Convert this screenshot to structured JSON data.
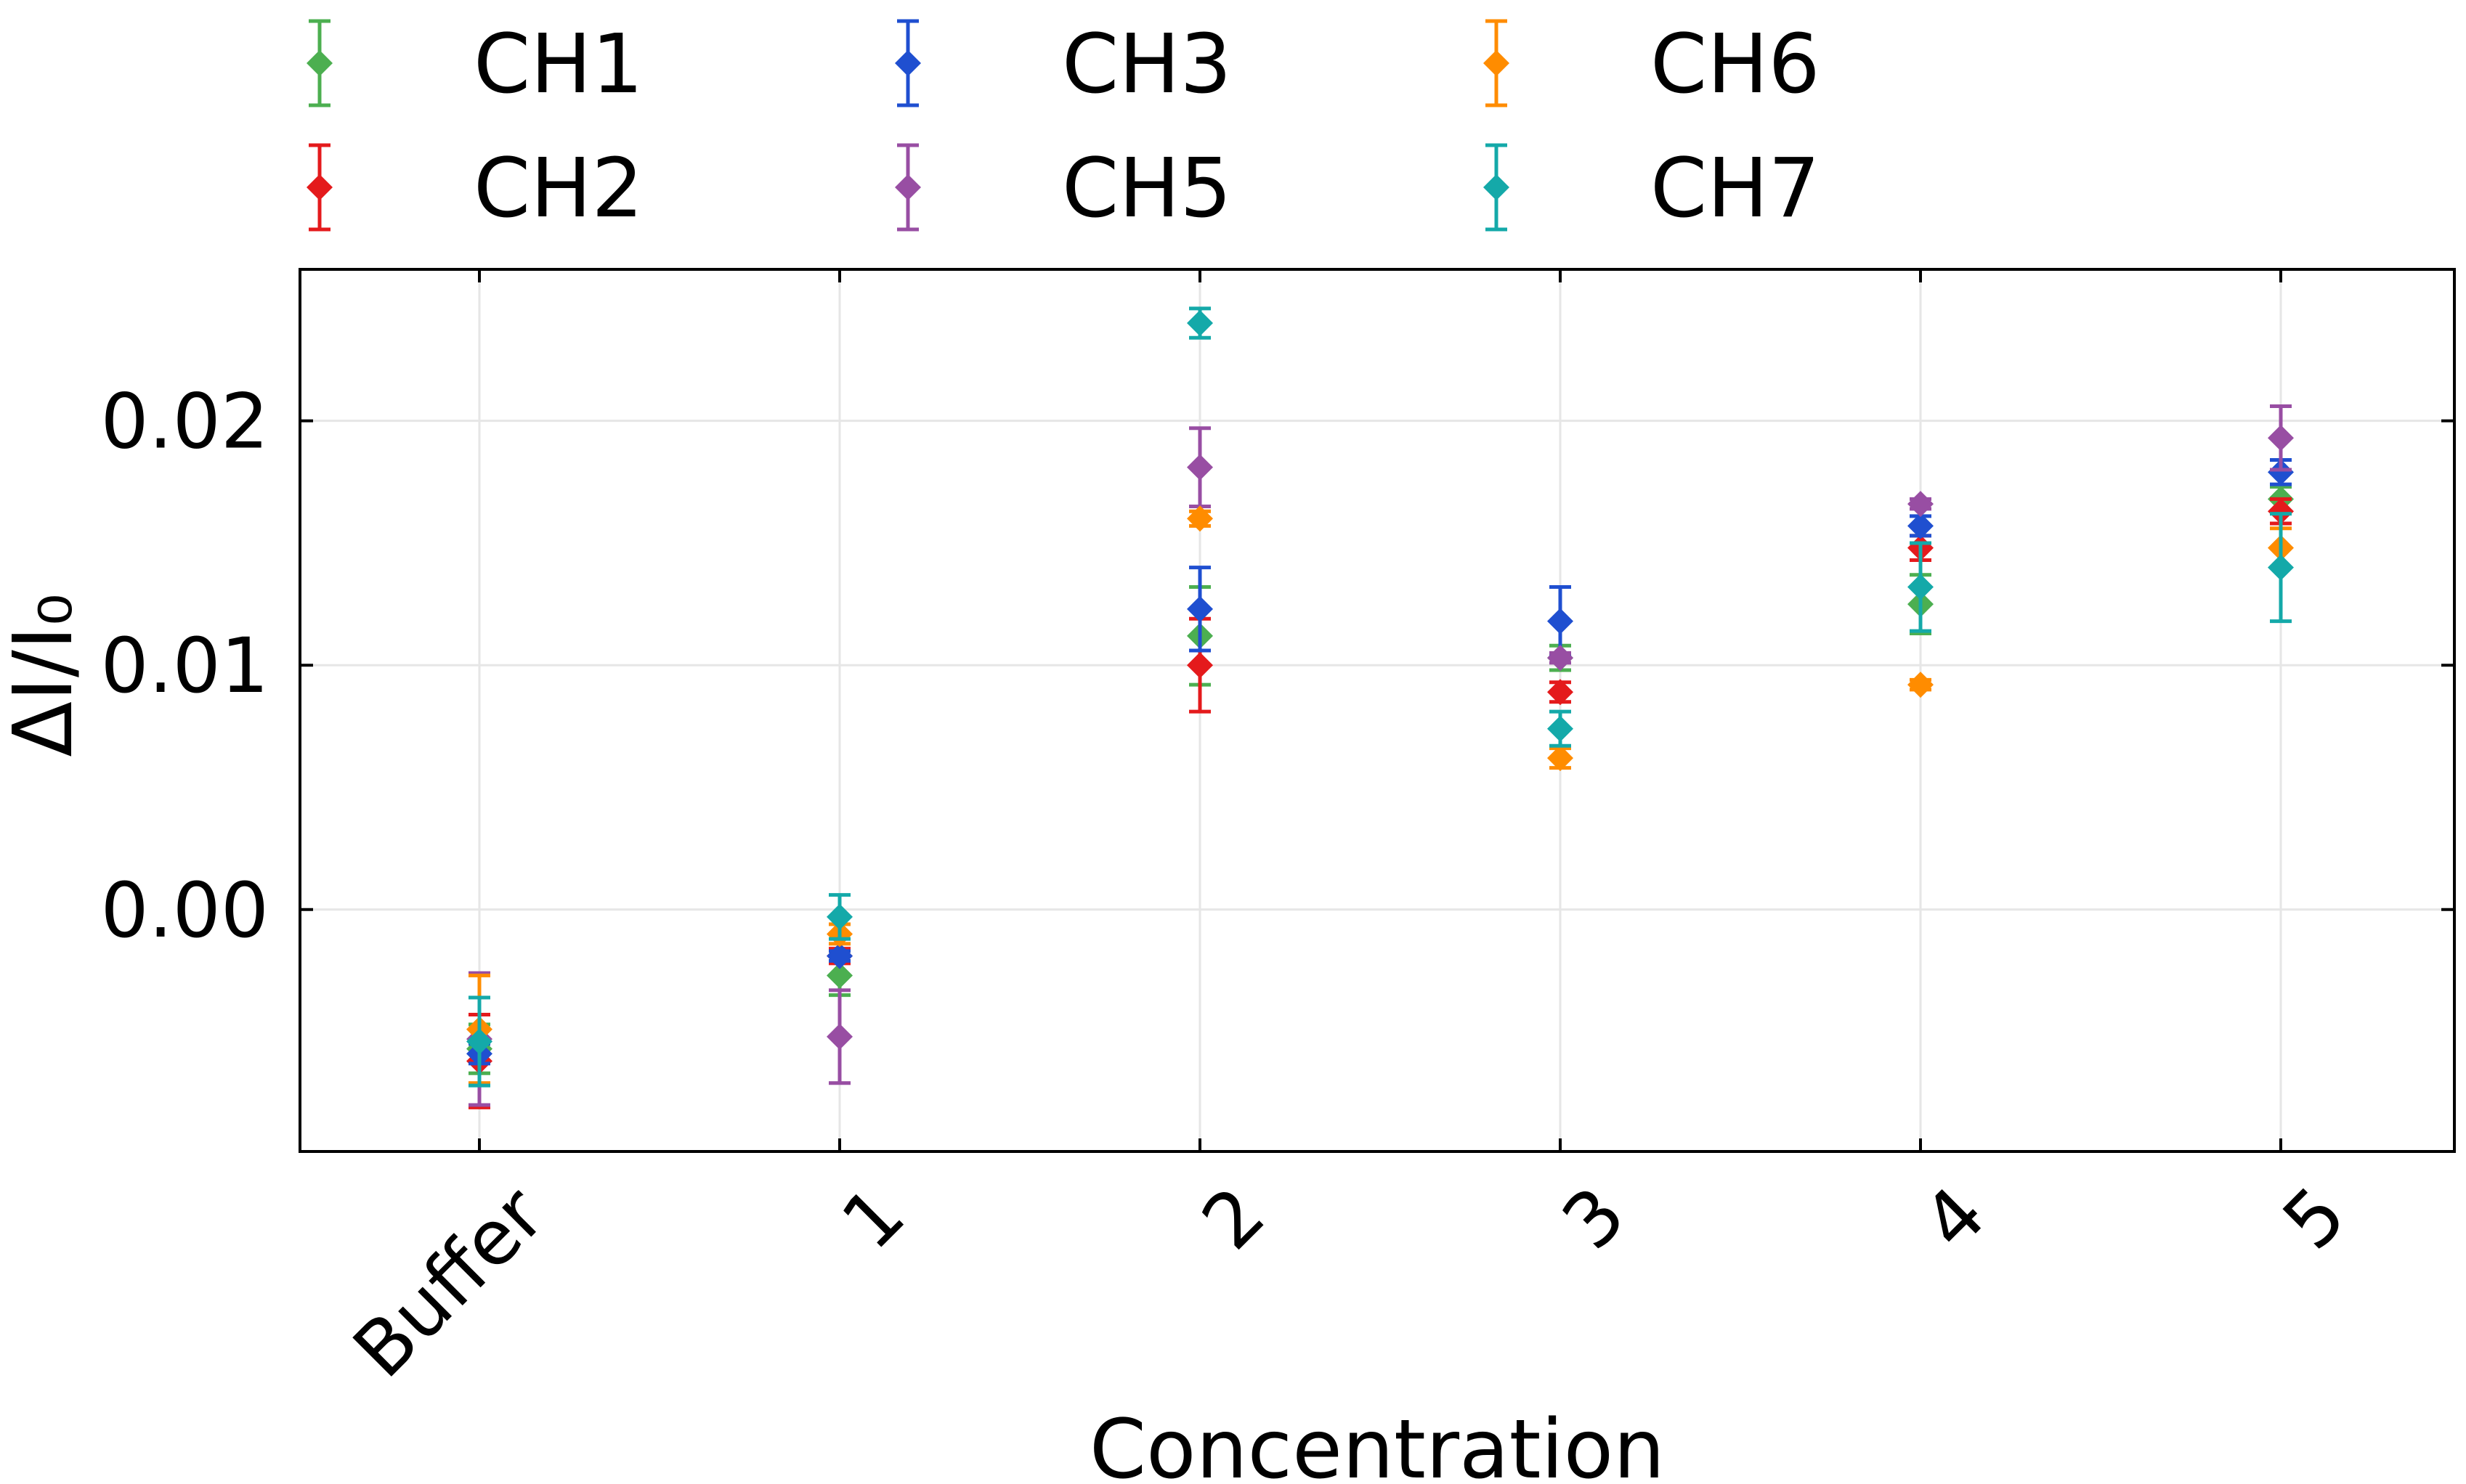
{
  "chart_data": {
    "type": "scatter",
    "title": "",
    "xlabel": "Concentration",
    "ylabel": "ΔI/I₀",
    "categories": [
      "Buffer",
      "1",
      "2",
      "3",
      "4",
      "5"
    ],
    "ylim": [
      -0.0099,
      0.0262
    ],
    "yticks": [
      "0.00",
      "0.01",
      "0.02"
    ],
    "ytick_values": [
      0.0,
      0.01,
      0.02
    ],
    "grid": true,
    "legend": "top, outside, 3 columns",
    "marker": "diamond with error bars",
    "series": [
      {
        "name": "CH1",
        "color": "#4CAF50",
        "values": [
          -0.0057,
          -0.0027,
          0.0112,
          0.0103,
          0.0125,
          0.0168
        ],
        "errors": [
          0.001,
          0.0008,
          0.002,
          0.0005,
          0.0012,
          0.0005
        ]
      },
      {
        "name": "CH2",
        "color": "#E41A1C",
        "values": [
          -0.0062,
          -0.0019,
          0.01,
          0.0089,
          0.0148,
          0.0163
        ],
        "errors": [
          0.0019,
          0.0003,
          0.0019,
          0.0004,
          0.0005,
          0.0005
        ]
      },
      {
        "name": "CH3",
        "color": "#1F4FD0",
        "values": [
          -0.0059,
          -0.0019,
          0.0123,
          0.0118,
          0.0157,
          0.0179
        ],
        "errors": [
          0.0004,
          0.0002,
          0.0017,
          0.0014,
          0.0004,
          0.0005
        ]
      },
      {
        "name": "CH5",
        "color": "#984EA3",
        "values": [
          -0.0053,
          -0.0052,
          0.0181,
          0.0103,
          0.0166,
          0.0193
        ],
        "errors": [
          0.0027,
          0.0019,
          0.0016,
          0.0002,
          0.0002,
          0.0013
        ]
      },
      {
        "name": "CH6",
        "color": "#FF8C00",
        "values": [
          -0.0049,
          -0.001,
          0.016,
          0.0062,
          0.0092,
          0.0148
        ],
        "errors": [
          0.0022,
          0.0004,
          0.0003,
          0.0004,
          0.0002,
          0.0008
        ]
      },
      {
        "name": "CH7",
        "color": "#14A9A9",
        "values": [
          -0.0054,
          -0.0003,
          0.024,
          0.0074,
          0.0132,
          0.014
        ],
        "errors": [
          0.0018,
          0.0009,
          0.0006,
          0.0007,
          0.0018,
          0.0022
        ]
      }
    ]
  }
}
